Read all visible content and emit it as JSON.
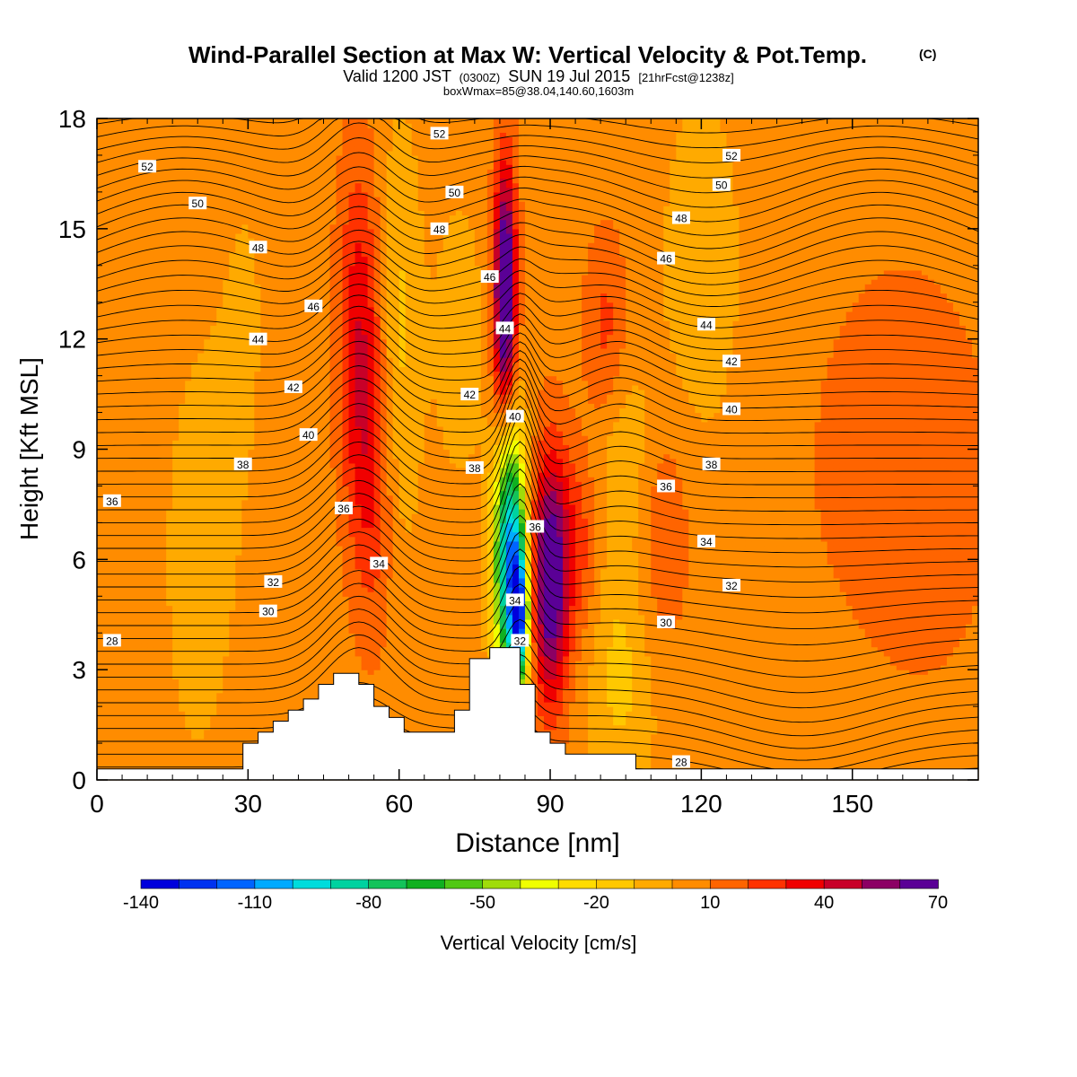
{
  "chart_data": {
    "type": "heatmap",
    "title": "Wind-Parallel Section at Max W: Vertical Velocity & Pot.Temp.",
    "title_mark": "(C)",
    "subtitle_parts": {
      "a": "Valid 1200 JST",
      "b": "(0300Z)",
      "c": "SUN 19 Jul 2015",
      "d": "[21hrFcst@1238z]"
    },
    "subtitle2": "boxWmax=85@38.04,140.60,1603m",
    "xlabel": "Distance [nm]",
    "ylabel": "Height [Kft MSL]",
    "xlim": [
      0,
      175
    ],
    "ylim": [
      0,
      18
    ],
    "xticks": [
      0,
      30,
      60,
      90,
      120,
      150
    ],
    "yticks": [
      0,
      3,
      6,
      9,
      12,
      15,
      18
    ],
    "grid": false,
    "colorbar": {
      "label": "Vertical Velocity [cm/s]",
      "min": -140,
      "max": 70,
      "step": 10,
      "tick_labels": [
        "-140",
        "-110",
        "-80",
        "-50",
        "-20",
        "10",
        "40",
        "70"
      ],
      "tick_values": [
        -140,
        -110,
        -80,
        -50,
        -20,
        10,
        40,
        70
      ],
      "colors": [
        "#0000dc",
        "#0032f0",
        "#0064ff",
        "#00aaff",
        "#00dcdc",
        "#00d2a0",
        "#14c35a",
        "#10b020",
        "#50c814",
        "#a0dc0a",
        "#f0ff00",
        "#ffdc00",
        "#ffc800",
        "#ffaa00",
        "#ff8c00",
        "#ff6400",
        "#ff3200",
        "#f00000",
        "#c80028",
        "#8c0064",
        "#5a0096"
      ]
    },
    "background_value": 5,
    "velocity_features": [
      {
        "x": 10,
        "y": 11,
        "sx": 9,
        "sy": 5,
        "v": 0
      },
      {
        "x": 20,
        "y": 6,
        "sx": 6,
        "sy": 5,
        "v": -8
      },
      {
        "x": 30,
        "y": 13,
        "sx": 5,
        "sy": 5,
        "v": -5
      },
      {
        "x": 52,
        "y": 12,
        "sx": 3,
        "sy": 3.5,
        "v": 32
      },
      {
        "x": 55,
        "y": 8,
        "sx": 3,
        "sy": 3,
        "v": 20
      },
      {
        "x": 60,
        "y": 12,
        "sx": 3,
        "sy": 4,
        "v": -18
      },
      {
        "x": 72,
        "y": 12,
        "sx": 4,
        "sy": 3,
        "v": -10
      },
      {
        "x": 81,
        "y": 14,
        "sx": 1.6,
        "sy": 2.2,
        "v": 60
      },
      {
        "x": 81,
        "y": 11.5,
        "sx": 1.6,
        "sy": 2,
        "v": 35
      },
      {
        "x": 82,
        "y": 6,
        "sx": 2.2,
        "sy": 2.6,
        "v": -115
      },
      {
        "x": 84,
        "y": 4.5,
        "sx": 1.2,
        "sy": 1.2,
        "v": -90
      },
      {
        "x": 90,
        "y": 5.5,
        "sx": 2.6,
        "sy": 2.4,
        "v": 70
      },
      {
        "x": 96,
        "y": 6.5,
        "sx": 3,
        "sy": 2,
        "v": 20
      },
      {
        "x": 101,
        "y": 12,
        "sx": 3,
        "sy": 2,
        "v": 20
      },
      {
        "x": 104,
        "y": 9,
        "sx": 5,
        "sy": 2,
        "v": -15
      },
      {
        "x": 104,
        "y": 3,
        "sx": 5,
        "sy": 2.5,
        "v": -18
      },
      {
        "x": 112,
        "y": 6.5,
        "sx": 4,
        "sy": 2.5,
        "v": 15
      },
      {
        "x": 120,
        "y": 14,
        "sx": 5,
        "sy": 3,
        "v": -15
      },
      {
        "x": 160,
        "y": 8,
        "sx": 12,
        "sy": 4,
        "v": 15
      },
      {
        "x": 140,
        "y": 2,
        "sx": 15,
        "sy": 2.5,
        "v": -5
      }
    ],
    "terrain": [
      [
        0,
        0.3
      ],
      [
        29,
        0.3
      ],
      [
        29,
        1
      ],
      [
        32,
        1
      ],
      [
        32,
        1.3
      ],
      [
        35,
        1.3
      ],
      [
        35,
        1.6
      ],
      [
        38,
        1.6
      ],
      [
        38,
        1.9
      ],
      [
        41,
        1.9
      ],
      [
        41,
        2.2
      ],
      [
        44,
        2.2
      ],
      [
        44,
        2.6
      ],
      [
        47,
        2.6
      ],
      [
        47,
        2.9
      ],
      [
        52,
        2.9
      ],
      [
        52,
        2.6
      ],
      [
        55,
        2.6
      ],
      [
        55,
        2.0
      ],
      [
        58,
        2.0
      ],
      [
        58,
        1.7
      ],
      [
        61,
        1.7
      ],
      [
        61,
        1.3
      ],
      [
        71,
        1.3
      ],
      [
        71,
        1.9
      ],
      [
        74,
        1.9
      ],
      [
        74,
        3.3
      ],
      [
        78,
        3.3
      ],
      [
        78,
        3.6
      ],
      [
        84,
        3.6
      ],
      [
        84,
        2.6
      ],
      [
        87,
        2.6
      ],
      [
        87,
        1.3
      ],
      [
        90,
        1.3
      ],
      [
        90,
        1.0
      ],
      [
        93,
        1.0
      ],
      [
        93,
        0.7
      ],
      [
        107,
        0.7
      ],
      [
        107,
        0.3
      ],
      [
        175,
        0.3
      ]
    ],
    "theta_contours": {
      "start_altitudes": [
        0.35,
        0.7,
        1.05,
        1.4,
        1.75,
        2.1,
        2.45,
        2.8,
        3.15,
        3.5,
        3.85,
        4.2,
        4.55,
        4.9,
        5.25,
        5.6,
        5.95,
        6.3,
        6.65,
        7.0,
        7.35,
        7.7,
        8.05,
        8.4,
        8.75,
        9.1,
        9.45,
        9.8,
        10.15,
        10.5,
        10.85,
        11.2,
        11.55,
        11.9,
        12.25,
        12.6,
        12.95,
        13.3,
        13.65,
        14.0,
        14.35,
        14.7,
        15.05,
        15.4,
        15.75,
        16.1,
        16.45,
        16.8,
        17.15,
        17.5,
        17.85
      ]
    },
    "contour_labels": [
      {
        "text": "52",
        "x": 10,
        "y": 16.7
      },
      {
        "text": "50",
        "x": 20,
        "y": 15.7
      },
      {
        "text": "48",
        "x": 32,
        "y": 14.5
      },
      {
        "text": "46",
        "x": 43,
        "y": 12.9
      },
      {
        "text": "44",
        "x": 32,
        "y": 12.0
      },
      {
        "text": "42",
        "x": 39,
        "y": 10.7
      },
      {
        "text": "40",
        "x": 42,
        "y": 9.4
      },
      {
        "text": "38",
        "x": 29,
        "y": 8.6
      },
      {
        "text": "36",
        "x": 3,
        "y": 7.6
      },
      {
        "text": "36",
        "x": 49,
        "y": 7.4
      },
      {
        "text": "34",
        "x": 56,
        "y": 5.9
      },
      {
        "text": "32",
        "x": 35,
        "y": 5.4
      },
      {
        "text": "30",
        "x": 34,
        "y": 4.6
      },
      {
        "text": "28",
        "x": 3,
        "y": 3.8
      },
      {
        "text": "52",
        "x": 68,
        "y": 17.6
      },
      {
        "text": "50",
        "x": 71,
        "y": 16.0
      },
      {
        "text": "48",
        "x": 68,
        "y": 15.0
      },
      {
        "text": "46",
        "x": 78,
        "y": 13.7
      },
      {
        "text": "44",
        "x": 81,
        "y": 12.3
      },
      {
        "text": "42",
        "x": 74,
        "y": 10.5
      },
      {
        "text": "40",
        "x": 83,
        "y": 9.9
      },
      {
        "text": "38",
        "x": 75,
        "y": 8.5
      },
      {
        "text": "36",
        "x": 87,
        "y": 6.9
      },
      {
        "text": "34",
        "x": 83,
        "y": 4.9
      },
      {
        "text": "32",
        "x": 84,
        "y": 3.8
      },
      {
        "text": "52",
        "x": 126,
        "y": 17.0
      },
      {
        "text": "50",
        "x": 124,
        "y": 16.2
      },
      {
        "text": "48",
        "x": 116,
        "y": 15.3
      },
      {
        "text": "46",
        "x": 113,
        "y": 14.2
      },
      {
        "text": "44",
        "x": 121,
        "y": 12.4
      },
      {
        "text": "42",
        "x": 126,
        "y": 11.4
      },
      {
        "text": "40",
        "x": 126,
        "y": 10.1
      },
      {
        "text": "38",
        "x": 122,
        "y": 8.6
      },
      {
        "text": "36",
        "x": 113,
        "y": 8.0
      },
      {
        "text": "34",
        "x": 121,
        "y": 6.5
      },
      {
        "text": "32",
        "x": 126,
        "y": 5.3
      },
      {
        "text": "30",
        "x": 113,
        "y": 4.3
      },
      {
        "text": "28",
        "x": 116,
        "y": 0.5
      }
    ]
  }
}
